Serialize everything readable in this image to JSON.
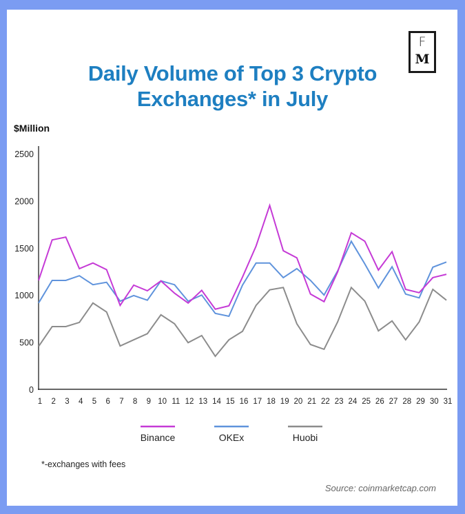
{
  "header": {
    "title_line1": "Daily Volume of Top 3 Crypto",
    "title_line2": "Exchanges* in July",
    "logo_top": "F",
    "logo_bottom": "M"
  },
  "colors": {
    "frame": "#7b9cf2",
    "title": "#1e7fc1",
    "binance": "#c53ad6",
    "okex": "#5f93dc",
    "huobi": "#8c8c8c",
    "axis": "#555555"
  },
  "footer": {
    "footnote": "*-exchanges with fees",
    "source": "Source: coinmarketcap.com"
  },
  "chart_data": {
    "type": "line",
    "title": "Daily Volume of Top 3 Crypto Exchanges* in July",
    "xlabel": "",
    "ylabel": "$Million",
    "ylim": [
      0,
      2500
    ],
    "yticks": [
      "0",
      "500",
      "1000",
      "1500",
      "2000",
      "2500"
    ],
    "ytick_values": [
      0,
      500,
      1000,
      1500,
      2000,
      2500
    ],
    "x": [
      "1",
      "2",
      "3",
      "4",
      "5",
      "6",
      "7",
      "8",
      "9",
      "10",
      "11",
      "12",
      "13",
      "14",
      "15",
      "16",
      "17",
      "18",
      "19",
      "20",
      "21",
      "22",
      "23",
      "24",
      "25",
      "26",
      "27",
      "28",
      "29",
      "30",
      "31"
    ],
    "grid": false,
    "legend_position": "bottom",
    "series": [
      {
        "name": "Binance",
        "color": "#c53ad6",
        "values": [
          1155,
          1585,
          1615,
          1280,
          1340,
          1270,
          890,
          1105,
          1045,
          1150,
          1020,
          915,
          1050,
          850,
          885,
          1190,
          1520,
          1950,
          1470,
          1395,
          1010,
          930,
          1245,
          1660,
          1570,
          1265,
          1460,
          1060,
          1025,
          1185,
          1220
        ]
      },
      {
        "name": "OKEx",
        "color": "#5f93dc",
        "values": [
          915,
          1155,
          1155,
          1205,
          1110,
          1135,
          935,
          995,
          945,
          1150,
          1110,
          935,
          1000,
          805,
          775,
          1105,
          1340,
          1340,
          1185,
          1280,
          1155,
          1000,
          1255,
          1570,
          1330,
          1075,
          1300,
          1010,
          970,
          1295,
          1350
        ]
      },
      {
        "name": "Huobi",
        "color": "#8c8c8c",
        "values": [
          455,
          665,
          665,
          710,
          915,
          820,
          460,
          525,
          590,
          790,
          695,
          495,
          570,
          350,
          525,
          615,
          890,
          1055,
          1080,
          695,
          475,
          425,
          715,
          1080,
          935,
          620,
          725,
          525,
          715,
          1060,
          945
        ]
      }
    ]
  }
}
